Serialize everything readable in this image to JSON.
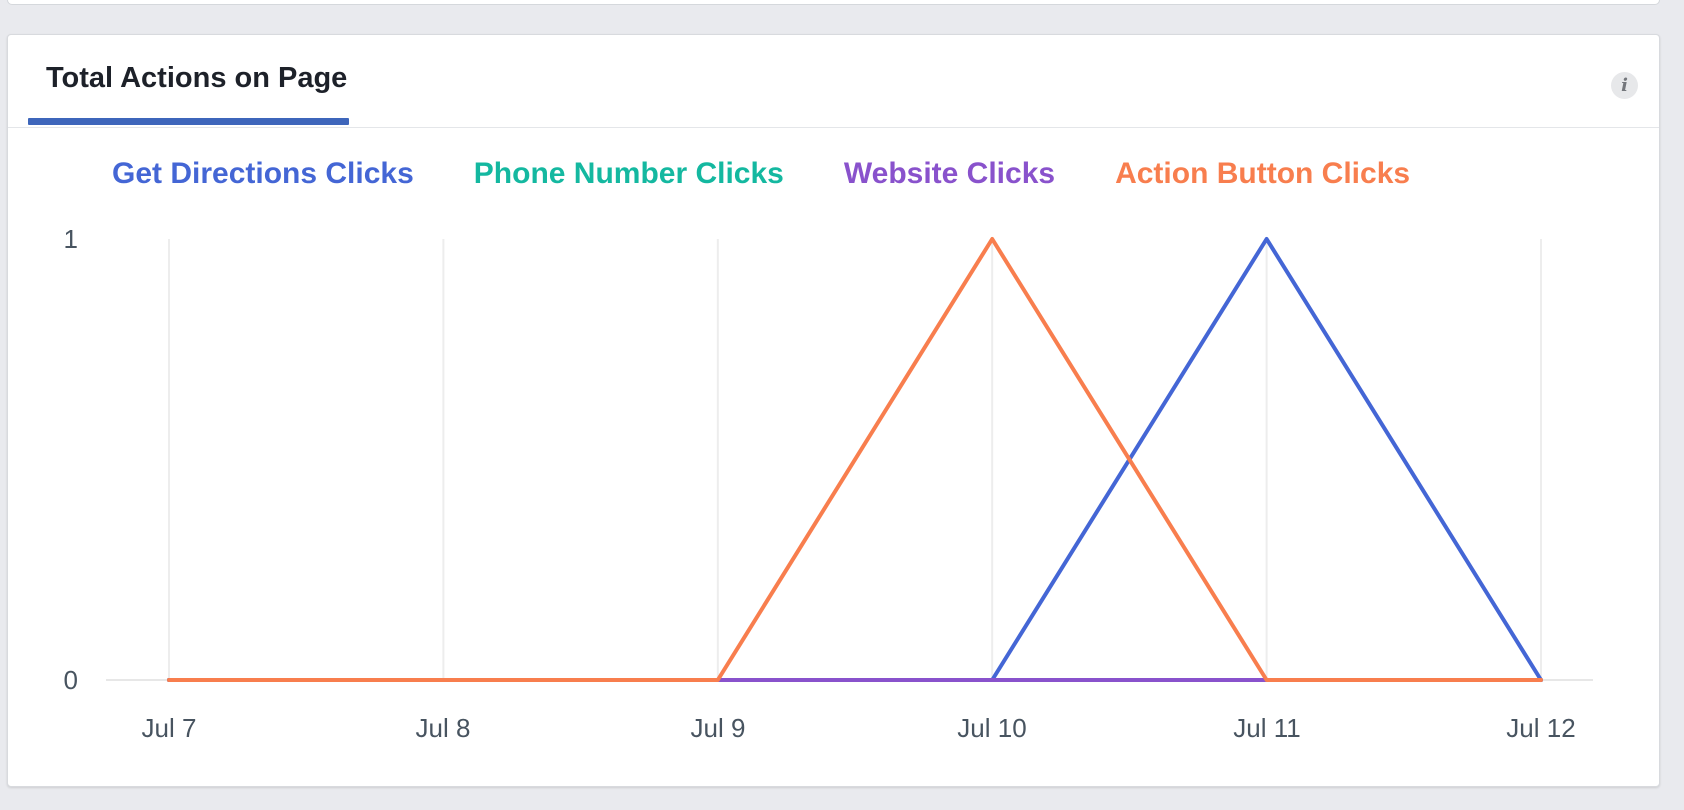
{
  "page": {
    "background": "#e9eaee"
  },
  "card": {
    "header": {
      "title": "Total Actions on Page",
      "info_icon_glyph": "i",
      "tab_underline_color": "#3e66bb"
    }
  },
  "legend": {
    "items": [
      {
        "label": "Get Directions Clicks",
        "color": "#4466d5"
      },
      {
        "label": "Phone Number Clicks",
        "color": "#14b8a0"
      },
      {
        "label": "Website Clicks",
        "color": "#8952cc"
      },
      {
        "label": "Action Button Clicks",
        "color": "#f87e4e"
      }
    ]
  },
  "chart_data": {
    "type": "line",
    "title": "Total Actions on Page",
    "x": [
      "Jul 7",
      "Jul 8",
      "Jul 9",
      "Jul 10",
      "Jul 11",
      "Jul 12"
    ],
    "yticks": [
      "1",
      "0"
    ],
    "ylim": [
      0,
      1
    ],
    "grid": "vertical-only",
    "legend_position": "top",
    "series": [
      {
        "name": "Get Directions Clicks",
        "color": "#4466d5",
        "values": [
          0,
          0,
          0,
          0,
          1,
          0
        ]
      },
      {
        "name": "Phone Number Clicks",
        "color": "#14b8a0",
        "values": [
          0,
          0,
          0,
          0,
          0,
          0
        ]
      },
      {
        "name": "Website Clicks",
        "color": "#8952cc",
        "values": [
          0,
          0,
          0,
          0,
          0,
          0
        ]
      },
      {
        "name": "Action Button Clicks",
        "color": "#f87e4e",
        "values": [
          0,
          0,
          0,
          1,
          0,
          0
        ]
      }
    ],
    "draw_order": [
      1,
      0,
      2,
      3
    ]
  }
}
